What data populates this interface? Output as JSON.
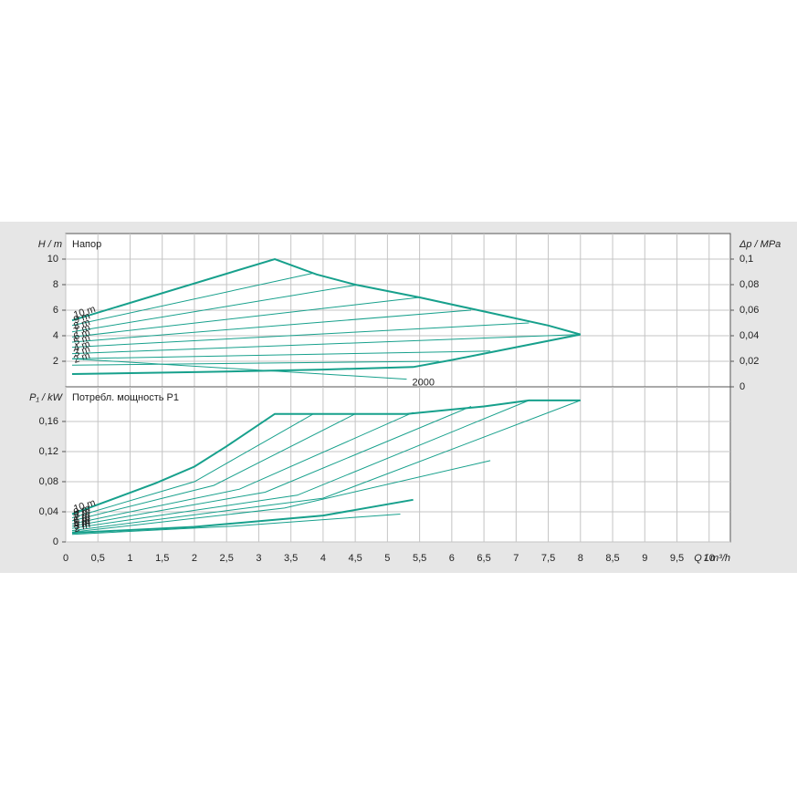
{
  "x_axis": {
    "label": "Q / m³/h",
    "xlim": [
      0,
      10.33
    ],
    "xticks": [
      0,
      {
        "value": 0.5,
        "label": "0,5"
      },
      1,
      {
        "value": 1.5,
        "label": "1,5"
      },
      2,
      {
        "value": 2.5,
        "label": "2,5"
      },
      3,
      {
        "value": 3.5,
        "label": "3,5"
      },
      4,
      {
        "value": 4.5,
        "label": "4,5"
      },
      5,
      {
        "value": 5.5,
        "label": "5,5"
      },
      6,
      {
        "value": 6.5,
        "label": "6,5"
      },
      7,
      {
        "value": 7.5,
        "label": "7,5"
      },
      8,
      {
        "value": 8.5,
        "label": "8,5"
      },
      9,
      {
        "value": 9.5,
        "label": "9,5"
      },
      10
    ]
  },
  "chart_data": [
    {
      "type": "line",
      "title": "Напор",
      "ylabel": "H / m",
      "y2label": "Δp / MPa",
      "ylim": [
        0,
        12
      ],
      "yticks": [
        2,
        4,
        6,
        8,
        10
      ],
      "y2lim": [
        0,
        0.12
      ],
      "y2ticks": [
        0,
        {
          "value": 0.02,
          "label": "0,02"
        },
        {
          "value": 0.04,
          "label": "0,04"
        },
        {
          "value": 0.06,
          "label": "0,06"
        },
        {
          "value": 0.08,
          "label": "0,08"
        },
        {
          "value": 0.1,
          "label": "0,1"
        }
      ],
      "grid": true,
      "series": [
        {
          "name": "10 m",
          "color": "#17a08c",
          "line_width": 2,
          "x": [
            0.1,
            3.25,
            3.9,
            4.5,
            5.5,
            6.5,
            7.5,
            8.0
          ],
          "values": [
            5.2,
            10,
            8.8,
            8.0,
            7.0,
            5.9,
            4.8,
            4.1
          ]
        },
        {
          "color": "#17a08c",
          "line_width": 2,
          "x": [
            0.1,
            2,
            4,
            5.4,
            6,
            6.5,
            7,
            8
          ],
          "values": [
            1.0,
            1.15,
            1.35,
            1.55,
            2.1,
            2.6,
            3.1,
            4.1
          ]
        },
        {
          "name": "9 m",
          "color": "#17a08c",
          "line_width": 1,
          "x": [
            0.1,
            3.85
          ],
          "values": [
            4.8,
            8.9
          ]
        },
        {
          "name": "8 m",
          "color": "#17a08c",
          "line_width": 1,
          "x": [
            0.1,
            4.55
          ],
          "values": [
            4.3,
            8.0
          ]
        },
        {
          "name": "7 m",
          "color": "#17a08c",
          "line_width": 1,
          "x": [
            0.1,
            5.5
          ],
          "values": [
            3.9,
            7.0
          ]
        },
        {
          "name": "6 m",
          "color": "#17a08c",
          "line_width": 1,
          "x": [
            0.1,
            6.3
          ],
          "values": [
            3.5,
            6.0
          ]
        },
        {
          "name": "5 m",
          "color": "#17a08c",
          "line_width": 1,
          "x": [
            0.1,
            7.2
          ],
          "values": [
            3.1,
            5.0
          ]
        },
        {
          "name": "4 m",
          "color": "#17a08c",
          "line_width": 1,
          "x": [
            0.1,
            8.0
          ],
          "values": [
            2.6,
            4.1
          ]
        },
        {
          "name": "3 m",
          "color": "#17a08c",
          "line_width": 1,
          "x": [
            0.1,
            6.6
          ],
          "values": [
            2.2,
            2.8
          ]
        },
        {
          "name": "2 m",
          "color": "#17a08c",
          "line_width": 1,
          "x": [
            0.1,
            5.8
          ],
          "values": [
            1.7,
            2.0
          ]
        },
        {
          "name": "2000",
          "color": "#17a08c",
          "line_width": 1,
          "label_position": "end",
          "x": [
            0.1,
            5.3
          ],
          "values": [
            2.2,
            0.6
          ]
        }
      ]
    },
    {
      "type": "line",
      "title": "Потребл. мощность P1",
      "ylabel": "P₁ / kW",
      "ylim": [
        0,
        0.206
      ],
      "yticks": [
        0,
        {
          "value": 0.04,
          "label": "0,04"
        },
        {
          "value": 0.08,
          "label": "0,08"
        },
        {
          "value": 0.12,
          "label": "0,12"
        },
        {
          "value": 0.16,
          "label": "0,16"
        }
      ],
      "grid": true,
      "series": [
        {
          "name": "10 m",
          "color": "#17a08c",
          "line_width": 2,
          "x": [
            0.1,
            1.4,
            2,
            2.5,
            3.25,
            5.3,
            6.5,
            7.2,
            8
          ],
          "values": [
            0.037,
            0.078,
            0.1,
            0.127,
            0.17,
            0.17,
            0.18,
            0.188,
            0.188
          ]
        },
        {
          "color": "#17a08c",
          "line_width": 2,
          "x": [
            0.1,
            2,
            4,
            5.4
          ],
          "values": [
            0.012,
            0.02,
            0.035,
            0.056
          ]
        },
        {
          "name": "9 m",
          "color": "#17a08c",
          "line_width": 1,
          "x": [
            0.1,
            2,
            3.85
          ],
          "values": [
            0.032,
            0.08,
            0.17
          ]
        },
        {
          "name": "8 m",
          "color": "#17a08c",
          "line_width": 1,
          "x": [
            0.1,
            2.3,
            4.5
          ],
          "values": [
            0.028,
            0.075,
            0.17
          ]
        },
        {
          "name": "7 m",
          "color": "#17a08c",
          "line_width": 1,
          "x": [
            0.1,
            2.7,
            5.4
          ],
          "values": [
            0.024,
            0.07,
            0.172
          ]
        },
        {
          "name": "6 m",
          "color": "#17a08c",
          "line_width": 1,
          "x": [
            0.1,
            3.1,
            6.3
          ],
          "values": [
            0.021,
            0.066,
            0.18
          ]
        },
        {
          "name": "5 m",
          "color": "#17a08c",
          "line_width": 1,
          "x": [
            0.1,
            3.6,
            7.2
          ],
          "values": [
            0.018,
            0.062,
            0.188
          ]
        },
        {
          "name": "4 m",
          "color": "#17a08c",
          "line_width": 1,
          "x": [
            0.1,
            4,
            8
          ],
          "values": [
            0.015,
            0.058,
            0.188
          ]
        },
        {
          "name": "3 m",
          "color": "#17a08c",
          "line_width": 1,
          "x": [
            0.1,
            3.4,
            6.6
          ],
          "values": [
            0.013,
            0.045,
            0.108
          ]
        },
        {
          "name": "2 m",
          "color": "#17a08c",
          "line_width": 1,
          "x": [
            0.1,
            2.6,
            5.2
          ],
          "values": [
            0.01,
            0.021,
            0.037
          ]
        }
      ]
    }
  ]
}
